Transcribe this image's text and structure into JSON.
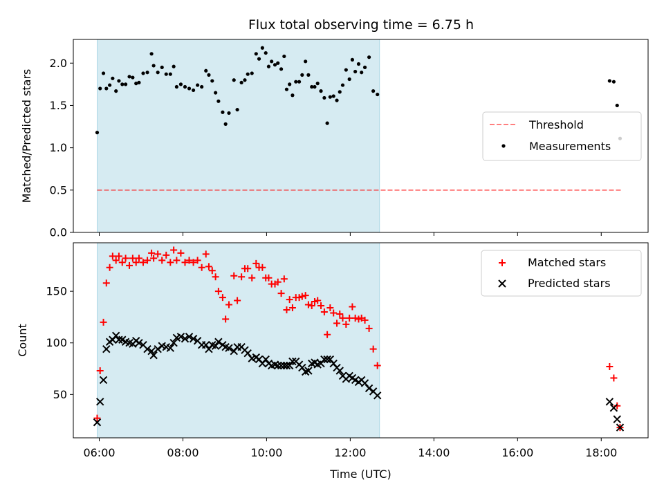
{
  "title": "Flux total observing time = 6.75 h",
  "colors": {
    "shade": "#add8e6",
    "threshold": "#ff0000",
    "measurement": "#000000",
    "matched": "#ff0000",
    "predicted": "#000000"
  },
  "chart_data": [
    {
      "type": "scatter",
      "ylabel": "Matched/Predicted stars",
      "xlim": [
        5.38,
        19.12
      ],
      "ylim": [
        0,
        2.28
      ],
      "yticks": [
        0.0,
        0.5,
        1.0,
        1.5,
        2.0
      ],
      "ytick_labels": [
        "0.0",
        "0.5",
        "1.0",
        "1.5",
        "2.0"
      ],
      "shaded_x_range": [
        5.95,
        12.7
      ],
      "legend_position": "center-right",
      "threshold": {
        "name": "Threshold",
        "y": 0.5,
        "x": [
          5.95,
          18.5
        ],
        "style": "dashed"
      },
      "series": [
        {
          "name": "Measurements",
          "points": [
            [
              5.95,
              1.18
            ],
            [
              6.02,
              1.7
            ],
            [
              6.1,
              1.88
            ],
            [
              6.17,
              1.7
            ],
            [
              6.25,
              1.74
            ],
            [
              6.32,
              1.82
            ],
            [
              6.4,
              1.67
            ],
            [
              6.47,
              1.79
            ],
            [
              6.55,
              1.75
            ],
            [
              6.63,
              1.75
            ],
            [
              6.72,
              1.84
            ],
            [
              6.8,
              1.83
            ],
            [
              6.88,
              1.76
            ],
            [
              6.95,
              1.77
            ],
            [
              7.05,
              1.88
            ],
            [
              7.15,
              1.89
            ],
            [
              7.25,
              2.11
            ],
            [
              7.3,
              1.97
            ],
            [
              7.4,
              1.89
            ],
            [
              7.5,
              1.95
            ],
            [
              7.6,
              1.87
            ],
            [
              7.7,
              1.87
            ],
            [
              7.78,
              1.96
            ],
            [
              7.85,
              1.72
            ],
            [
              7.95,
              1.75
            ],
            [
              8.05,
              1.72
            ],
            [
              8.15,
              1.7
            ],
            [
              8.25,
              1.68
            ],
            [
              8.35,
              1.74
            ],
            [
              8.45,
              1.72
            ],
            [
              8.55,
              1.91
            ],
            [
              8.62,
              1.86
            ],
            [
              8.7,
              1.79
            ],
            [
              8.78,
              1.65
            ],
            [
              8.85,
              1.55
            ],
            [
              8.95,
              1.42
            ],
            [
              9.02,
              1.28
            ],
            [
              9.1,
              1.41
            ],
            [
              9.22,
              1.8
            ],
            [
              9.3,
              1.45
            ],
            [
              9.4,
              1.77
            ],
            [
              9.48,
              1.8
            ],
            [
              9.55,
              1.87
            ],
            [
              9.65,
              1.88
            ],
            [
              9.75,
              2.11
            ],
            [
              9.82,
              2.05
            ],
            [
              9.9,
              2.18
            ],
            [
              9.98,
              2.12
            ],
            [
              10.05,
              1.96
            ],
            [
              10.12,
              2.02
            ],
            [
              10.2,
              1.98
            ],
            [
              10.27,
              2.0
            ],
            [
              10.35,
              1.93
            ],
            [
              10.42,
              2.08
            ],
            [
              10.48,
              1.69
            ],
            [
              10.55,
              1.75
            ],
            [
              10.62,
              1.62
            ],
            [
              10.7,
              1.78
            ],
            [
              10.78,
              1.78
            ],
            [
              10.85,
              1.86
            ],
            [
              10.93,
              2.02
            ],
            [
              11.0,
              1.86
            ],
            [
              11.08,
              1.72
            ],
            [
              11.15,
              1.72
            ],
            [
              11.22,
              1.76
            ],
            [
              11.3,
              1.67
            ],
            [
              11.38,
              1.59
            ],
            [
              11.45,
              1.29
            ],
            [
              11.52,
              1.6
            ],
            [
              11.6,
              1.61
            ],
            [
              11.68,
              1.56
            ],
            [
              11.75,
              1.66
            ],
            [
              11.82,
              1.74
            ],
            [
              11.9,
              1.92
            ],
            [
              11.98,
              1.81
            ],
            [
              12.05,
              2.04
            ],
            [
              12.12,
              1.9
            ],
            [
              12.2,
              1.99
            ],
            [
              12.27,
              1.89
            ],
            [
              12.35,
              1.95
            ],
            [
              12.45,
              2.07
            ],
            [
              12.55,
              1.67
            ],
            [
              12.65,
              1.63
            ],
            [
              18.2,
              1.79
            ],
            [
              18.3,
              1.78
            ],
            [
              18.38,
              1.5
            ],
            [
              18.45,
              1.11
            ]
          ]
        }
      ]
    },
    {
      "type": "scatter",
      "xlabel": "Time (UTC)",
      "ylabel": "Count",
      "xlim": [
        5.38,
        19.12
      ],
      "ylim": [
        8,
        197
      ],
      "xticks": [
        6,
        8,
        10,
        12,
        14,
        16,
        18
      ],
      "xtick_labels": [
        "06:00",
        "08:00",
        "10:00",
        "12:00",
        "14:00",
        "16:00",
        "18:00"
      ],
      "yticks": [
        50,
        100,
        150
      ],
      "ytick_labels": [
        "50",
        "100",
        "150"
      ],
      "shaded_x_range": [
        5.95,
        12.7
      ],
      "legend_position": "top-right",
      "series": [
        {
          "name": "Matched stars",
          "marker": "+",
          "points": [
            [
              5.95,
              27
            ],
            [
              6.02,
              73
            ],
            [
              6.1,
              120
            ],
            [
              6.17,
              158
            ],
            [
              6.25,
              173
            ],
            [
              6.32,
              184
            ],
            [
              6.4,
              180
            ],
            [
              6.47,
              184
            ],
            [
              6.55,
              178
            ],
            [
              6.63,
              182
            ],
            [
              6.72,
              175
            ],
            [
              6.8,
              182
            ],
            [
              6.88,
              178
            ],
            [
              6.95,
              182
            ],
            [
              7.05,
              178
            ],
            [
              7.15,
              180
            ],
            [
              7.25,
              187
            ],
            [
              7.3,
              182
            ],
            [
              7.4,
              186
            ],
            [
              7.5,
              180
            ],
            [
              7.6,
              185
            ],
            [
              7.7,
              178
            ],
            [
              7.78,
              190
            ],
            [
              7.85,
              180
            ],
            [
              7.95,
              187
            ],
            [
              8.05,
              178
            ],
            [
              8.15,
              180
            ],
            [
              8.25,
              178
            ],
            [
              8.35,
              180
            ],
            [
              8.45,
              173
            ],
            [
              8.55,
              186
            ],
            [
              8.62,
              174
            ],
            [
              8.7,
              170
            ],
            [
              8.78,
              164
            ],
            [
              8.85,
              150
            ],
            [
              8.95,
              144
            ],
            [
              9.02,
              123
            ],
            [
              9.1,
              137
            ],
            [
              9.22,
              165
            ],
            [
              9.3,
              141
            ],
            [
              9.4,
              164
            ],
            [
              9.48,
              172
            ],
            [
              9.55,
              172
            ],
            [
              9.65,
              163
            ],
            [
              9.75,
              177
            ],
            [
              9.82,
              173
            ],
            [
              9.9,
              173
            ],
            [
              9.98,
              163
            ],
            [
              10.05,
              163
            ],
            [
              10.12,
              157
            ],
            [
              10.2,
              157
            ],
            [
              10.27,
              159
            ],
            [
              10.35,
              148
            ],
            [
              10.42,
              162
            ],
            [
              10.48,
              132
            ],
            [
              10.55,
              142
            ],
            [
              10.62,
              134
            ],
            [
              10.7,
              144
            ],
            [
              10.78,
              144
            ],
            [
              10.85,
              145
            ],
            [
              10.93,
              146
            ],
            [
              11.0,
              137
            ],
            [
              11.08,
              136
            ],
            [
              11.15,
              140
            ],
            [
              11.22,
              141
            ],
            [
              11.3,
              136
            ],
            [
              11.38,
              130
            ],
            [
              11.45,
              108
            ],
            [
              11.52,
              134
            ],
            [
              11.6,
              129
            ],
            [
              11.68,
              119
            ],
            [
              11.75,
              128
            ],
            [
              11.82,
              124
            ],
            [
              11.9,
              118
            ],
            [
              11.98,
              124
            ],
            [
              12.05,
              135
            ],
            [
              12.12,
              124
            ],
            [
              12.2,
              123
            ],
            [
              12.27,
              124
            ],
            [
              12.35,
              122
            ],
            [
              12.45,
              114
            ],
            [
              12.55,
              94
            ],
            [
              12.65,
              78
            ],
            [
              18.2,
              77
            ],
            [
              18.3,
              66
            ],
            [
              18.38,
              39
            ],
            [
              18.45,
              18
            ]
          ]
        },
        {
          "name": "Predicted stars",
          "marker": "x",
          "points": [
            [
              5.95,
              23
            ],
            [
              6.02,
              43
            ],
            [
              6.1,
              64
            ],
            [
              6.17,
              94
            ],
            [
              6.25,
              101
            ],
            [
              6.32,
              103
            ],
            [
              6.4,
              107
            ],
            [
              6.47,
              103
            ],
            [
              6.55,
              103
            ],
            [
              6.63,
              101
            ],
            [
              6.72,
              100
            ],
            [
              6.8,
              99
            ],
            [
              6.88,
              102
            ],
            [
              6.95,
              100
            ],
            [
              7.05,
              98
            ],
            [
              7.15,
              94
            ],
            [
              7.25,
              92
            ],
            [
              7.3,
              88
            ],
            [
              7.4,
              94
            ],
            [
              7.5,
              97
            ],
            [
              7.6,
              96
            ],
            [
              7.7,
              95
            ],
            [
              7.78,
              100
            ],
            [
              7.85,
              105
            ],
            [
              7.95,
              106
            ],
            [
              8.05,
              104
            ],
            [
              8.15,
              106
            ],
            [
              8.25,
              104
            ],
            [
              8.35,
              102
            ],
            [
              8.45,
              98
            ],
            [
              8.55,
              98
            ],
            [
              8.62,
              94
            ],
            [
              8.7,
              98
            ],
            [
              8.78,
              97
            ],
            [
              8.85,
              101
            ],
            [
              8.95,
              98
            ],
            [
              9.02,
              96
            ],
            [
              9.1,
              95
            ],
            [
              9.22,
              92
            ],
            [
              9.3,
              96
            ],
            [
              9.4,
              96
            ],
            [
              9.48,
              93
            ],
            [
              9.55,
              90
            ],
            [
              9.65,
              85
            ],
            [
              9.75,
              86
            ],
            [
              9.82,
              84
            ],
            [
              9.9,
              80
            ],
            [
              9.98,
              84
            ],
            [
              10.05,
              80
            ],
            [
              10.12,
              78
            ],
            [
              10.2,
              79
            ],
            [
              10.27,
              78
            ],
            [
              10.35,
              78
            ],
            [
              10.42,
              78
            ],
            [
              10.48,
              78
            ],
            [
              10.55,
              78
            ],
            [
              10.62,
              82
            ],
            [
              10.7,
              82
            ],
            [
              10.78,
              79
            ],
            [
              10.85,
              76
            ],
            [
              10.93,
              72
            ],
            [
              11.0,
              73
            ],
            [
              11.08,
              80
            ],
            [
              11.15,
              81
            ],
            [
              11.22,
              79
            ],
            [
              11.3,
              80
            ],
            [
              11.38,
              84
            ],
            [
              11.45,
              84
            ],
            [
              11.52,
              84
            ],
            [
              11.6,
              80
            ],
            [
              11.68,
              76
            ],
            [
              11.75,
              73
            ],
            [
              11.82,
              68
            ],
            [
              11.9,
              65
            ],
            [
              11.98,
              68
            ],
            [
              12.05,
              66
            ],
            [
              12.12,
              64
            ],
            [
              12.2,
              62
            ],
            [
              12.27,
              64
            ],
            [
              12.35,
              61
            ],
            [
              12.45,
              56
            ],
            [
              12.55,
              53
            ],
            [
              12.65,
              49
            ],
            [
              18.2,
              43
            ],
            [
              18.3,
              37
            ],
            [
              18.38,
              26
            ],
            [
              18.45,
              18
            ]
          ]
        }
      ]
    }
  ]
}
